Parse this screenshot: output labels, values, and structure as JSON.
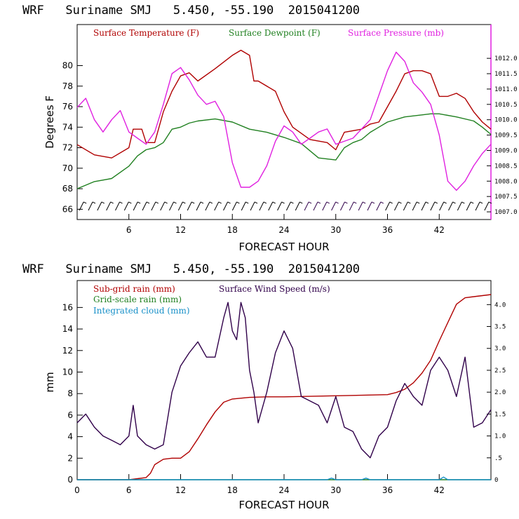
{
  "chart_data": [
    {
      "type": "line",
      "title": "WRF   Suriname SMJ   5.450, -55.190  2015041200",
      "xlabel": "FORECAST HOUR",
      "ylabel": "Degrees F",
      "xlim": [
        0,
        48
      ],
      "ylim": [
        65,
        84
      ],
      "y2lim": [
        1006.75,
        1013.1
      ],
      "x_ticks": [
        "6",
        "12",
        "18",
        "24",
        "30",
        "36",
        "42"
      ],
      "y_ticks": [
        "66",
        "68",
        "70",
        "72",
        "74",
        "76",
        "78",
        "80"
      ],
      "y2_ticks": [
        "1007.0",
        "1007.5",
        "1008.0",
        "1008.5",
        "1009.0",
        "1009.5",
        "1010.0",
        "1010.5",
        "1011.0",
        "1011.5",
        "1012.0"
      ],
      "colors": {
        "temperature": "#b00000",
        "dewpoint": "#208020",
        "pressure": "#e020e0",
        "wind": "#30004a"
      },
      "series": [
        {
          "name": "Surface Temperature (F)",
          "axis": "left",
          "x": [
            0,
            2,
            4,
            6,
            6.5,
            7.5,
            8,
            9,
            10,
            11,
            12,
            13,
            14,
            16,
            18,
            19,
            20,
            20.5,
            21,
            23,
            24,
            25,
            27,
            29,
            30,
            31,
            33,
            34,
            35,
            36,
            37,
            38,
            39,
            40,
            41,
            42,
            43,
            44,
            45,
            46,
            47,
            48
          ],
          "y": [
            72.3,
            71.3,
            71,
            72,
            73.8,
            73.8,
            72.5,
            72.5,
            75.5,
            77.5,
            79,
            79.3,
            78.5,
            79.7,
            81,
            81.5,
            81,
            78.5,
            78.5,
            77.5,
            75.5,
            74,
            72.8,
            72.5,
            71.8,
            73.5,
            73.8,
            74.3,
            74.5,
            76,
            77.5,
            79.2,
            79.5,
            79.5,
            79.2,
            77,
            77,
            77.3,
            76.8,
            75.5,
            74.5,
            73.8
          ]
        },
        {
          "name": "Surface Dewpoint (F)",
          "axis": "left",
          "x": [
            0,
            2,
            4,
            6,
            7,
            8,
            9,
            10,
            11,
            12,
            13,
            14,
            16,
            18,
            20,
            22,
            24,
            26,
            28,
            30,
            31,
            32,
            33,
            34,
            35,
            36,
            38,
            40,
            41,
            42,
            44,
            46,
            47,
            48
          ],
          "y": [
            68,
            68.7,
            69,
            70.2,
            71.2,
            71.8,
            72,
            72.5,
            73.8,
            74,
            74.4,
            74.6,
            74.8,
            74.5,
            73.8,
            73.5,
            73,
            72.4,
            71,
            70.8,
            72,
            72.5,
            72.8,
            73.5,
            74,
            74.5,
            75,
            75.2,
            75.3,
            75.3,
            75,
            74.6,
            74,
            73.3
          ]
        },
        {
          "name": "Surface Pressure (mb)",
          "axis": "right",
          "x": [
            0,
            1,
            2,
            3,
            4,
            5,
            6,
            7,
            8,
            9,
            10,
            11,
            12,
            13,
            14,
            15,
            16,
            17,
            18,
            19,
            20,
            21,
            22,
            23,
            24,
            25,
            26,
            27,
            28,
            29,
            30,
            31,
            32,
            33,
            34,
            35,
            36,
            37,
            38,
            39,
            40,
            41,
            42,
            43,
            44,
            45,
            46,
            47,
            48
          ],
          "y": [
            1010.4,
            1010.7,
            1010,
            1009.6,
            1010,
            1010.3,
            1009.6,
            1009.4,
            1009.2,
            1009.6,
            1010.5,
            1011.5,
            1011.7,
            1011.3,
            1010.8,
            1010.5,
            1010.6,
            1010.1,
            1008.6,
            1007.8,
            1007.8,
            1008,
            1008.5,
            1009.3,
            1009.8,
            1009.6,
            1009.2,
            1009.4,
            1009.6,
            1009.7,
            1009.2,
            1009.3,
            1009.4,
            1009.7,
            1010,
            1010.8,
            1011.6,
            1012.2,
            1011.9,
            1011.2,
            1010.9,
            1010.5,
            1009.5,
            1008,
            1007.7,
            1008,
            1008.5,
            1008.9,
            1009.2
          ]
        }
      ],
      "wind_barbs": {
        "x_start": 0.5,
        "x_end": 47.5,
        "count": 46,
        "y": 66.3
      }
    },
    {
      "type": "line",
      "title": "WRF   Suriname SMJ   5.450, -55.190  2015041200",
      "xlabel": "FORECAST HOUR",
      "ylabel": "mm",
      "xlim": [
        0,
        48
      ],
      "ylim": [
        0,
        18.5
      ],
      "y2lim": [
        0,
        4.55
      ],
      "x_ticks": [
        "0",
        "6",
        "12",
        "18",
        "24",
        "30",
        "36",
        "42"
      ],
      "y_ticks": [
        "0",
        "2",
        "4",
        "6",
        "8",
        "10",
        "12",
        "14",
        "16"
      ],
      "y2_ticks": [
        "0",
        ".5",
        "1.0",
        "1.5",
        "2.0",
        "2.5",
        "3.0",
        "3.5",
        "4.0"
      ],
      "colors": {
        "subgrid": "#b00000",
        "gridscale": "#208020",
        "cloud": "#1890c8",
        "wind": "#30004a"
      },
      "series": [
        {
          "name": "Sub-grid rain (mm)",
          "axis": "left",
          "x": [
            0,
            6,
            7,
            8,
            8.5,
            9,
            10,
            11,
            12,
            13,
            14,
            15,
            16,
            17,
            18,
            20,
            22,
            24,
            30,
            36,
            37,
            38,
            39,
            40,
            41,
            42,
            43,
            44,
            45,
            46,
            47,
            48
          ],
          "y": [
            0,
            0,
            0.1,
            0.2,
            0.6,
            1.4,
            1.9,
            2,
            2,
            2.6,
            3.8,
            5.1,
            6.3,
            7.2,
            7.5,
            7.65,
            7.7,
            7.7,
            7.8,
            7.9,
            8.1,
            8.4,
            9,
            9.9,
            11.1,
            12.9,
            14.6,
            16.3,
            16.9,
            17,
            17.1,
            17.2
          ]
        },
        {
          "name": "Grid-scale rain (mm)",
          "axis": "left",
          "x": [
            0,
            48
          ],
          "y": [
            0,
            0
          ]
        },
        {
          "name": "Integrated cloud (mm)",
          "axis": "left",
          "x": [
            0,
            29,
            29.5,
            30,
            31,
            33,
            33.5,
            34,
            42,
            42.5,
            43,
            48
          ],
          "y": [
            0,
            0,
            0.15,
            0,
            0,
            0,
            0.15,
            0,
            0,
            0.25,
            0,
            0
          ]
        },
        {
          "name": "Surface Wind Speed (m/s)",
          "axis": "right",
          "x": [
            0,
            1,
            2,
            3,
            4,
            5,
            6,
            6.5,
            7,
            8,
            9,
            10,
            11,
            12,
            13,
            14,
            15,
            16,
            17,
            17.5,
            18,
            18.5,
            19,
            19.5,
            20,
            20.5,
            21,
            22,
            23,
            24,
            25,
            26,
            27,
            28,
            29,
            30,
            31,
            32,
            33,
            34,
            35,
            36,
            37,
            38,
            39,
            40,
            41,
            42,
            43,
            44,
            45,
            46,
            47,
            48
          ],
          "y": [
            1.3,
            1.5,
            1.2,
            1,
            0.9,
            0.8,
            1,
            1.7,
            1,
            0.8,
            0.7,
            0.8,
            2,
            2.6,
            2.9,
            3.15,
            2.8,
            2.8,
            3.7,
            4.05,
            3.4,
            3.2,
            4.05,
            3.7,
            2.5,
            2,
            1.3,
            2,
            2.9,
            3.4,
            3,
            1.9,
            1.8,
            1.7,
            1.3,
            1.9,
            1.2,
            1.1,
            0.7,
            0.5,
            1,
            1.2,
            1.8,
            2.2,
            1.9,
            1.7,
            2.5,
            2.8,
            2.5,
            1.9,
            2.8,
            1.2,
            1.3,
            1.6
          ]
        }
      ]
    }
  ],
  "legend": {
    "top": [
      {
        "label": "Surface Temperature (F)",
        "color": "#b00000"
      },
      {
        "label": "Surface Dewpoint (F)",
        "color": "#208020"
      },
      {
        "label": "Surface Pressure (mb)",
        "color": "#e020e0"
      }
    ],
    "bottom": [
      {
        "label": "Sub-grid rain (mm)",
        "color": "#b00000"
      },
      {
        "label": "Surface Wind Speed (m/s)",
        "color": "#30004a"
      },
      {
        "label": "Grid-scale rain (mm)",
        "color": "#208020"
      },
      {
        "label": "Integrated cloud (mm)",
        "color": "#1890c8"
      }
    ]
  }
}
